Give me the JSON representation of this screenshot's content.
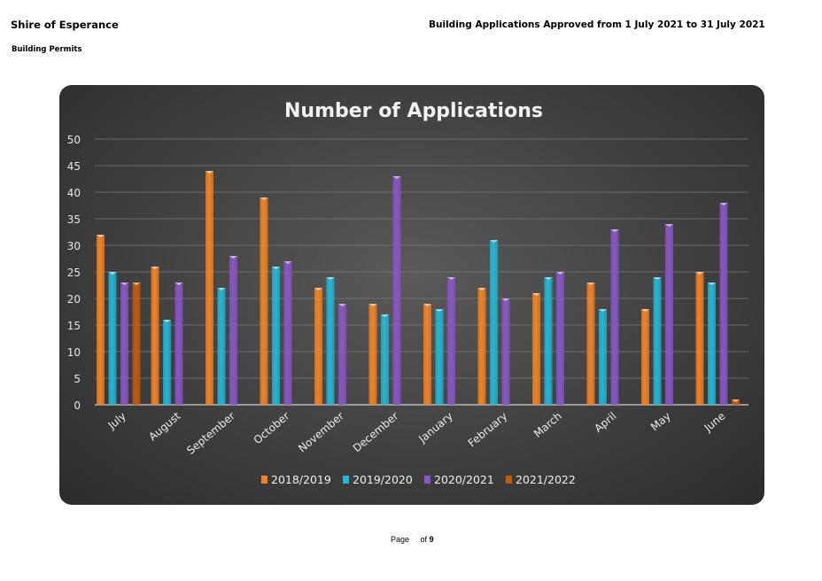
{
  "header": {
    "org": "Shire of Esperance",
    "section": "Building Permits",
    "report_title": "Building Applications Approved from 1 July 2021 to 31 July 2021"
  },
  "footer": {
    "page_label": "Page",
    "of_label": "of",
    "total_pages": "9"
  },
  "chart_data": {
    "type": "bar",
    "title": "Number of Applications",
    "xlabel": "",
    "ylabel": "",
    "ylim": [
      0,
      50
    ],
    "yticks": [
      0,
      5,
      10,
      15,
      20,
      25,
      30,
      35,
      40,
      45,
      50
    ],
    "grid": true,
    "legend_position": "bottom",
    "categories": [
      "July",
      "August",
      "September",
      "October",
      "November",
      "December",
      "January",
      "February",
      "March",
      "April",
      "May",
      "June"
    ],
    "series": [
      {
        "name": "2018/2019",
        "color": "#f58220",
        "values": [
          32,
          26,
          44,
          39,
          22,
          19,
          19,
          22,
          21,
          23,
          18,
          25
        ]
      },
      {
        "name": "2019/2020",
        "color": "#1fb8d8",
        "values": [
          25,
          16,
          22,
          26,
          24,
          17,
          18,
          31,
          24,
          18,
          24,
          23
        ]
      },
      {
        "name": "2020/2021",
        "color": "#8a55c8",
        "values": [
          23,
          23,
          28,
          27,
          19,
          43,
          24,
          20,
          25,
          33,
          34,
          38
        ]
      },
      {
        "name": "2021/2022",
        "color": "#c55a0a",
        "values": [
          23,
          null,
          null,
          null,
          null,
          null,
          null,
          null,
          null,
          null,
          null,
          1
        ]
      }
    ]
  }
}
